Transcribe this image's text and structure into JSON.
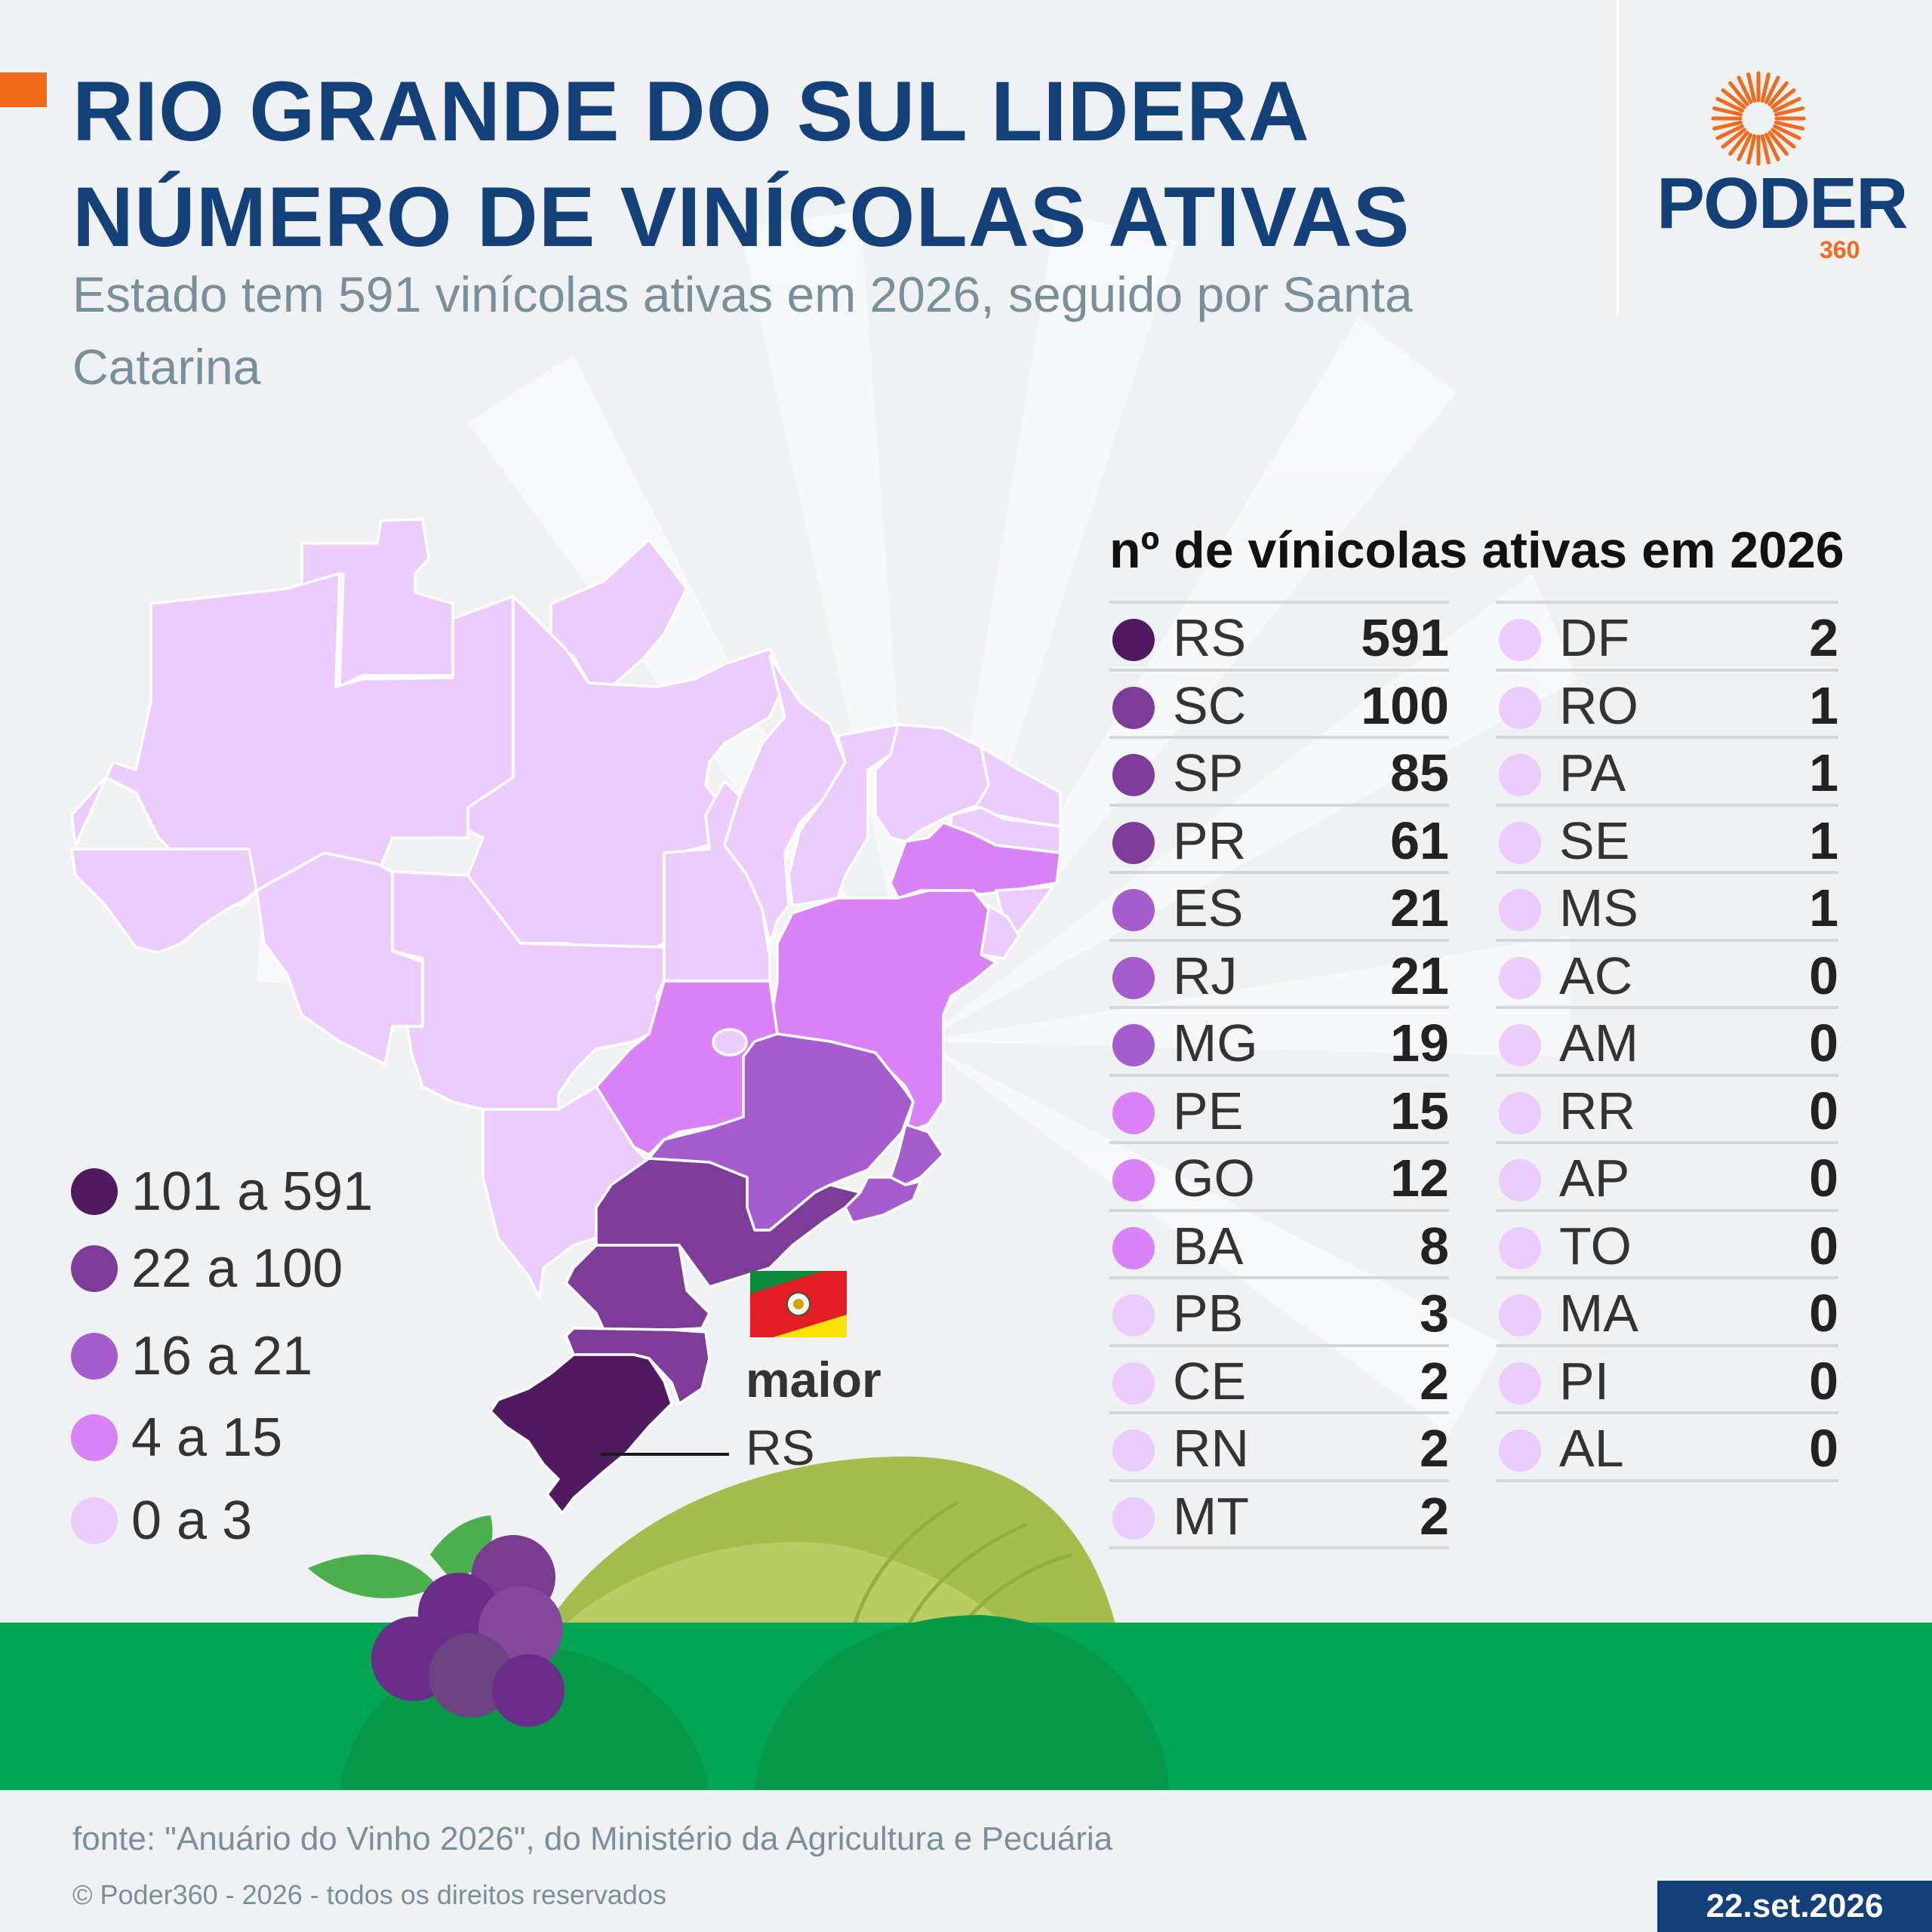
{
  "header": {
    "title_line1": "RIO GRANDE DO SUL LIDERA",
    "title_line2": "NÚMERO DE VINÍCOLAS ATIVAS",
    "subtitle": "Estado tem 591 vinícolas ativas em 2026, seguido por Santa Catarina"
  },
  "logo": {
    "word": "PODER",
    "sub": "360"
  },
  "colors": {
    "background": "#eff1f3",
    "title": "#14407a",
    "accent": "#f26a1b",
    "class_101_591": "#4f1a5e",
    "class_22_100": "#7d3c98",
    "class_16_21": "#a55ccc",
    "class_4_15": "#d884f7",
    "class_0_3": "#eccbfd",
    "grass": "#00a651",
    "hill": "#a3be4c"
  },
  "map": {
    "highlight_icon": "rio-grande-do-sul-flag-icon",
    "callout_bold": "maior",
    "callout_label": "RS"
  },
  "legend": [
    {
      "label": "101 a 591",
      "class": "c1"
    },
    {
      "label": "22 a 100",
      "class": "c2"
    },
    {
      "label": "16 a 21",
      "class": "c3"
    },
    {
      "label": "4 a 15",
      "class": "c4"
    },
    {
      "label": "0 a 3",
      "class": "c5"
    }
  ],
  "table": {
    "title": "nº de vínicolas ativas em 2026",
    "col1": [
      {
        "state": "RS",
        "value": "591",
        "class": "c1"
      },
      {
        "state": "SC",
        "value": "100",
        "class": "c2"
      },
      {
        "state": "SP",
        "value": "85",
        "class": "c2"
      },
      {
        "state": "PR",
        "value": "61",
        "class": "c2"
      },
      {
        "state": "ES",
        "value": "21",
        "class": "c3"
      },
      {
        "state": "RJ",
        "value": "21",
        "class": "c3"
      },
      {
        "state": "MG",
        "value": "19",
        "class": "c3"
      },
      {
        "state": "PE",
        "value": "15",
        "class": "c4"
      },
      {
        "state": "GO",
        "value": "12",
        "class": "c4"
      },
      {
        "state": "BA",
        "value": "8",
        "class": "c4"
      },
      {
        "state": "PB",
        "value": "3",
        "class": "c5"
      },
      {
        "state": "CE",
        "value": "2",
        "class": "c5"
      },
      {
        "state": "RN",
        "value": "2",
        "class": "c5"
      },
      {
        "state": "MT",
        "value": "2",
        "class": "c5"
      }
    ],
    "col2": [
      {
        "state": "DF",
        "value": "2",
        "class": "c5"
      },
      {
        "state": "RO",
        "value": "1",
        "class": "c5"
      },
      {
        "state": "PA",
        "value": "1",
        "class": "c5"
      },
      {
        "state": "SE",
        "value": "1",
        "class": "c5"
      },
      {
        "state": "MS",
        "value": "1",
        "class": "c5"
      },
      {
        "state": "AC",
        "value": "0",
        "class": "c5"
      },
      {
        "state": "AM",
        "value": "0",
        "class": "c5"
      },
      {
        "state": "RR",
        "value": "0",
        "class": "c5"
      },
      {
        "state": "AP",
        "value": "0",
        "class": "c5"
      },
      {
        "state": "TO",
        "value": "0",
        "class": "c5"
      },
      {
        "state": "MA",
        "value": "0",
        "class": "c5"
      },
      {
        "state": "PI",
        "value": "0",
        "class": "c5"
      },
      {
        "state": "AL",
        "value": "0",
        "class": "c5"
      }
    ]
  },
  "footer": {
    "source": "fonte: \"Anuário do Vinho 2026\", do Ministério da Agricultura e Pecuária",
    "copyright": "© Poder360 - 2026 - todos os direitos reservados",
    "date": "22.set.2026"
  }
}
